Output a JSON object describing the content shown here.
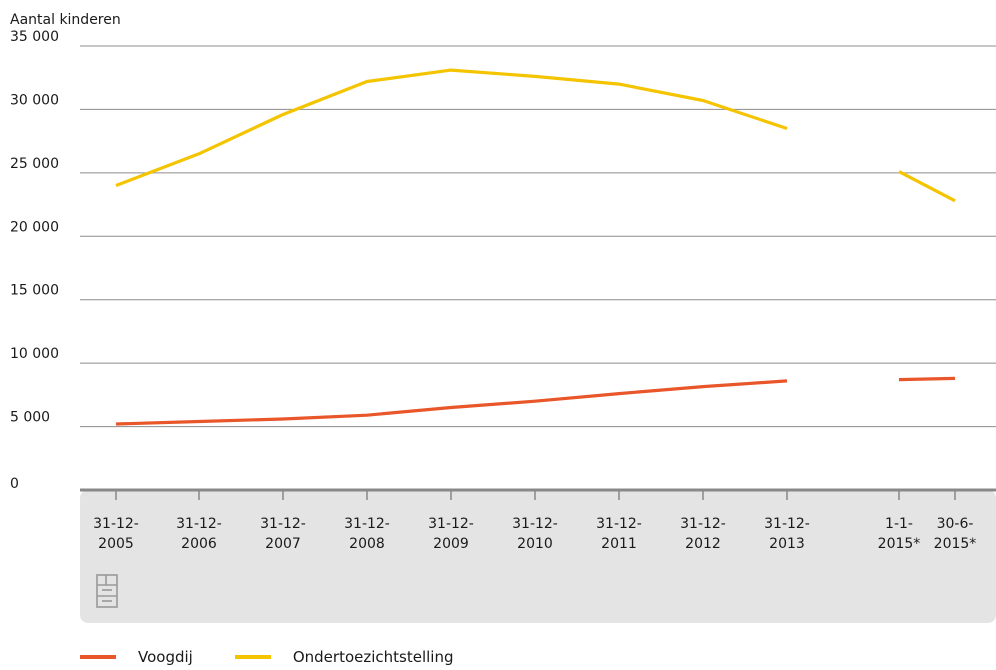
{
  "chart_data": {
    "type": "line",
    "ylabel": "Aantal kinderen",
    "ylim": [
      0,
      35000
    ],
    "yticks": [
      {
        "value": 0,
        "label": "0"
      },
      {
        "value": 5000,
        "label": "5 000"
      },
      {
        "value": 10000,
        "label": "10 000"
      },
      {
        "value": 15000,
        "label": "15 000"
      },
      {
        "value": 20000,
        "label": "20 000"
      },
      {
        "value": 25000,
        "label": "25 000"
      },
      {
        "value": 30000,
        "label": "30 000"
      },
      {
        "value": 35000,
        "label": "35 000"
      }
    ],
    "categories": [
      [
        "31-12-",
        "2005"
      ],
      [
        "31-12-",
        "2006"
      ],
      [
        "31-12-",
        "2007"
      ],
      [
        "31-12-",
        "2008"
      ],
      [
        "31-12-",
        "2009"
      ],
      [
        "31-12-",
        "2010"
      ],
      [
        "31-12-",
        "2011"
      ],
      [
        "31-12-",
        "2012"
      ],
      [
        "31-12-",
        "2013"
      ],
      [
        "1-1-",
        "2015*"
      ],
      [
        "30-6-",
        "2015*"
      ]
    ],
    "series": [
      {
        "name": "Voogdij",
        "color": "#e8562a",
        "values": [
          5200,
          5400,
          5600,
          5900,
          6500,
          7000,
          7600,
          8150,
          8600,
          8700,
          8800
        ]
      },
      {
        "name": "Ondertoezichtstelling",
        "color": "#f5c400",
        "values": [
          24000,
          26500,
          29600,
          32200,
          33100,
          32600,
          32000,
          30700,
          28500,
          25100,
          22800
        ]
      }
    ],
    "line_breaks_after_index": 8,
    "grid": true,
    "legend_position": "bottom-left"
  },
  "branding": {
    "logo_icon": "cbs-logo-icon"
  }
}
